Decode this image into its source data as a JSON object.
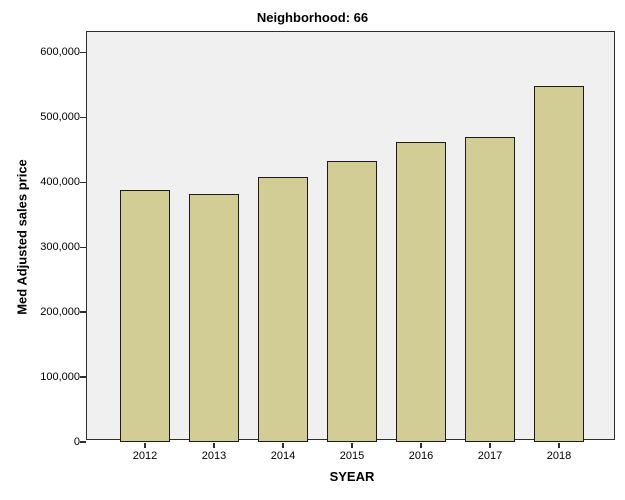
{
  "chart": {
    "title": "Neighborhood: 66",
    "x_axis_title": "SYEAR",
    "y_axis_title": "Med Adjusted sales price"
  },
  "chart_data": {
    "type": "bar",
    "title": "Neighborhood: 66",
    "xlabel": "SYEAR",
    "ylabel": "Med Adjusted sales price",
    "categories": [
      "2012",
      "2013",
      "2014",
      "2015",
      "2016",
      "2017",
      "2018"
    ],
    "values": [
      388000,
      382000,
      408000,
      433000,
      463000,
      470000,
      548000
    ],
    "y_ticks": [
      0,
      100000,
      200000,
      300000,
      400000,
      500000,
      600000
    ],
    "y_tick_labels": [
      "0",
      "100,000",
      "200,000",
      "300,000",
      "400,000",
      "500,000",
      "600,000"
    ],
    "ylim": [
      0,
      635000
    ],
    "grid": false,
    "legend": false,
    "bar_color": "#d2cd94",
    "bar_border_color": "#1c1c1c",
    "plot_bg": "#f0f0f0",
    "frame_color": "#2e2e2e"
  }
}
